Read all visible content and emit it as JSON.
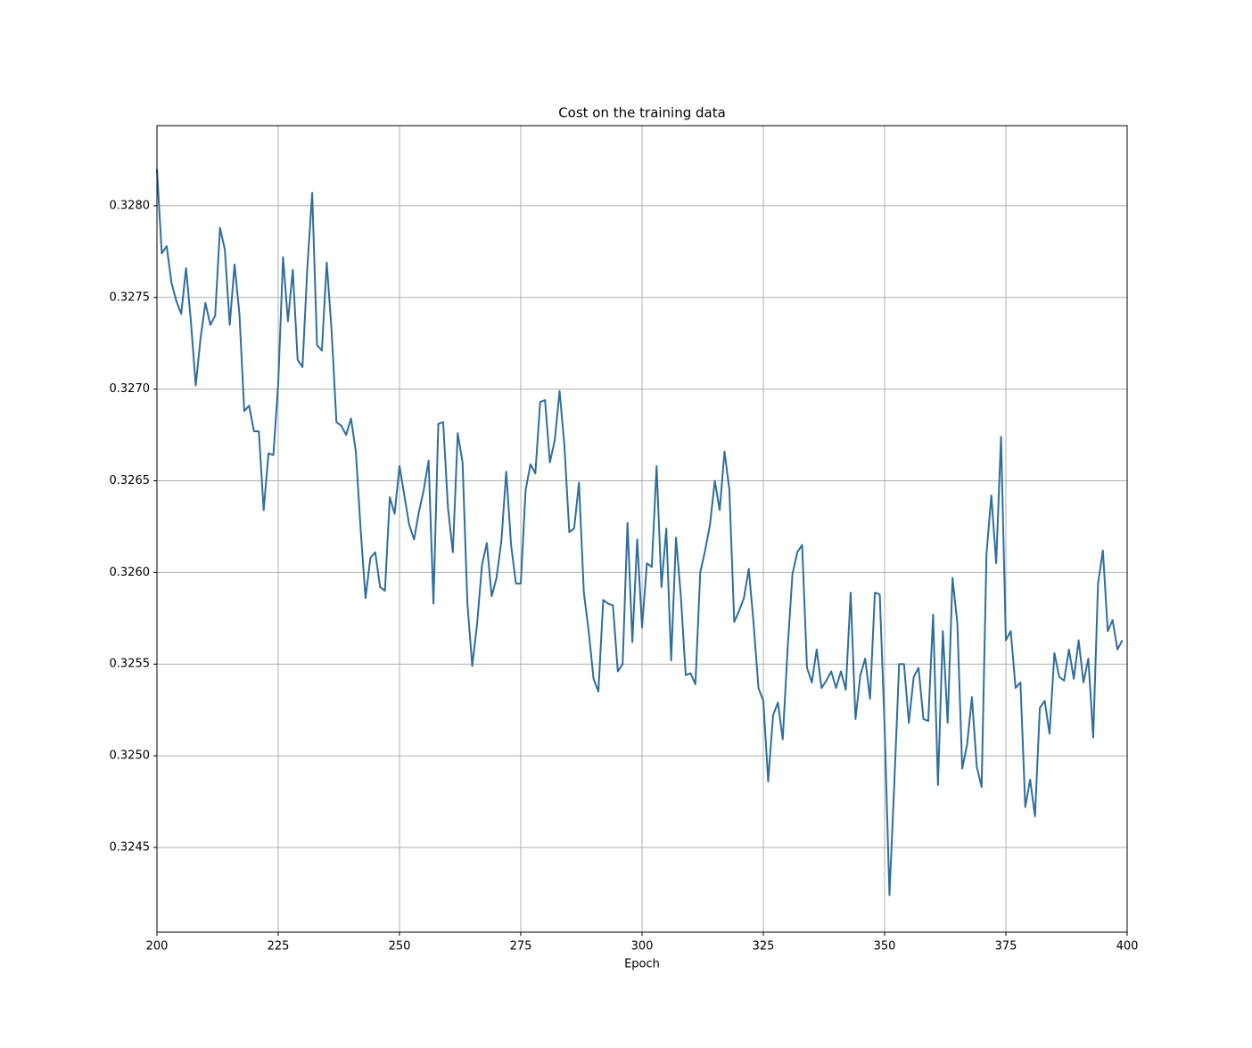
{
  "chart_data": {
    "type": "line",
    "title": "Cost on the training data",
    "xlabel": "Epoch",
    "x": [
      200,
      201,
      202,
      203,
      204,
      205,
      206,
      207,
      208,
      209,
      210,
      211,
      212,
      213,
      214,
      215,
      216,
      217,
      218,
      219,
      220,
      221,
      222,
      223,
      224,
      225,
      226,
      227,
      228,
      229,
      230,
      231,
      232,
      233,
      234,
      235,
      236,
      237,
      238,
      239,
      240,
      241,
      242,
      243,
      244,
      245,
      246,
      247,
      248,
      249,
      250,
      251,
      252,
      253,
      254,
      255,
      256,
      257,
      258,
      259,
      260,
      261,
      262,
      263,
      264,
      265,
      266,
      267,
      268,
      269,
      270,
      271,
      272,
      273,
      274,
      275,
      276,
      277,
      278,
      279,
      280,
      281,
      282,
      283,
      284,
      285,
      286,
      287,
      288,
      289,
      290,
      291,
      292,
      293,
      294,
      295,
      296,
      297,
      298,
      299,
      300,
      301,
      302,
      303,
      304,
      305,
      306,
      307,
      308,
      309,
      310,
      311,
      312,
      313,
      314,
      315,
      316,
      317,
      318,
      319,
      320,
      321,
      322,
      323,
      324,
      325,
      326,
      327,
      328,
      329,
      330,
      331,
      332,
      333,
      334,
      335,
      336,
      337,
      338,
      339,
      340,
      341,
      342,
      343,
      344,
      345,
      346,
      347,
      348,
      349,
      350,
      351,
      352,
      353,
      354,
      355,
      356,
      357,
      358,
      359,
      360,
      361,
      362,
      363,
      364,
      365,
      366,
      367,
      368,
      369,
      370,
      371,
      372,
      373,
      374,
      375,
      376,
      377,
      378,
      379,
      380,
      381,
      382,
      383,
      384,
      385,
      386,
      387,
      388,
      389,
      390,
      391,
      392,
      393,
      394,
      395,
      396,
      397,
      398,
      399
    ],
    "series": [
      {
        "name": "Cost",
        "color": "#2e6e9e",
        "values": [
          0.3282,
          0.32774,
          0.32778,
          0.32758,
          0.32748,
          0.32741,
          0.32766,
          0.32737,
          0.32702,
          0.32728,
          0.32747,
          0.32735,
          0.3274,
          0.32788,
          0.32776,
          0.32735,
          0.32768,
          0.32741,
          0.32688,
          0.32691,
          0.32677,
          0.32677,
          0.32634,
          0.32665,
          0.32664,
          0.32703,
          0.32772,
          0.32737,
          0.32765,
          0.32716,
          0.32712,
          0.32766,
          0.32807,
          0.32724,
          0.32721,
          0.32769,
          0.32732,
          0.32682,
          0.3268,
          0.32675,
          0.32684,
          0.32666,
          0.32623,
          0.32586,
          0.32608,
          0.32611,
          0.32592,
          0.3259,
          0.32641,
          0.32632,
          0.32658,
          0.32642,
          0.32626,
          0.32618,
          0.32633,
          0.32645,
          0.32661,
          0.32583,
          0.32681,
          0.32682,
          0.32635,
          0.32611,
          0.32676,
          0.3266,
          0.32583,
          0.32549,
          0.32572,
          0.32604,
          0.32616,
          0.32587,
          0.32597,
          0.32617,
          0.32655,
          0.32615,
          0.32594,
          0.32594,
          0.32645,
          0.32659,
          0.32654,
          0.32693,
          0.32694,
          0.3266,
          0.32672,
          0.32699,
          0.32669,
          0.32622,
          0.32624,
          0.32649,
          0.32589,
          0.32568,
          0.32542,
          0.32535,
          0.32585,
          0.32583,
          0.32582,
          0.32546,
          0.3255,
          0.32627,
          0.32562,
          0.32618,
          0.3257,
          0.32605,
          0.32603,
          0.32658,
          0.32592,
          0.32624,
          0.32552,
          0.32619,
          0.32587,
          0.32544,
          0.32545,
          0.32539,
          0.326,
          0.32612,
          0.32626,
          0.3265,
          0.32634,
          0.32666,
          0.32645,
          0.32573,
          0.32579,
          0.32586,
          0.32602,
          0.32572,
          0.32537,
          0.3253,
          0.32486,
          0.32522,
          0.32529,
          0.32509,
          0.32558,
          0.32599,
          0.32611,
          0.32615,
          0.32548,
          0.3254,
          0.32558,
          0.32537,
          0.32541,
          0.32546,
          0.32537,
          0.32546,
          0.32536,
          0.32589,
          0.3252,
          0.32544,
          0.32553,
          0.32531,
          0.32589,
          0.32588,
          0.32516,
          0.32424,
          0.32485,
          0.3255,
          0.3255,
          0.32518,
          0.32543,
          0.32548,
          0.3252,
          0.32519,
          0.32577,
          0.32484,
          0.32568,
          0.32518,
          0.32597,
          0.32572,
          0.32493,
          0.32506,
          0.32532,
          0.32494,
          0.32483,
          0.3261,
          0.32642,
          0.32605,
          0.32674,
          0.32563,
          0.32568,
          0.32537,
          0.3254,
          0.32472,
          0.32487,
          0.32467,
          0.32526,
          0.3253,
          0.32512,
          0.32556,
          0.32543,
          0.32541,
          0.32558,
          0.32542,
          0.32563,
          0.3254,
          0.32553,
          0.3251,
          0.32594,
          0.32612,
          0.32568,
          0.32574,
          0.32558,
          0.32563
        ]
      }
    ],
    "xlim": [
      200,
      400
    ],
    "xticks": [
      200,
      225,
      250,
      275,
      300,
      325,
      350,
      375,
      400
    ],
    "ylim": [
      0.324038,
      0.328437
    ],
    "yticks": [
      0.3245,
      {
        "value": 0.325,
        "label": "0.3250"
      },
      0.3255,
      {
        "value": 0.326,
        "label": "0.3260"
      },
      0.3265,
      {
        "value": 0.327,
        "label": "0.3270"
      },
      0.3275,
      {
        "value": 0.328,
        "label": "0.3280"
      }
    ],
    "grid": true
  }
}
